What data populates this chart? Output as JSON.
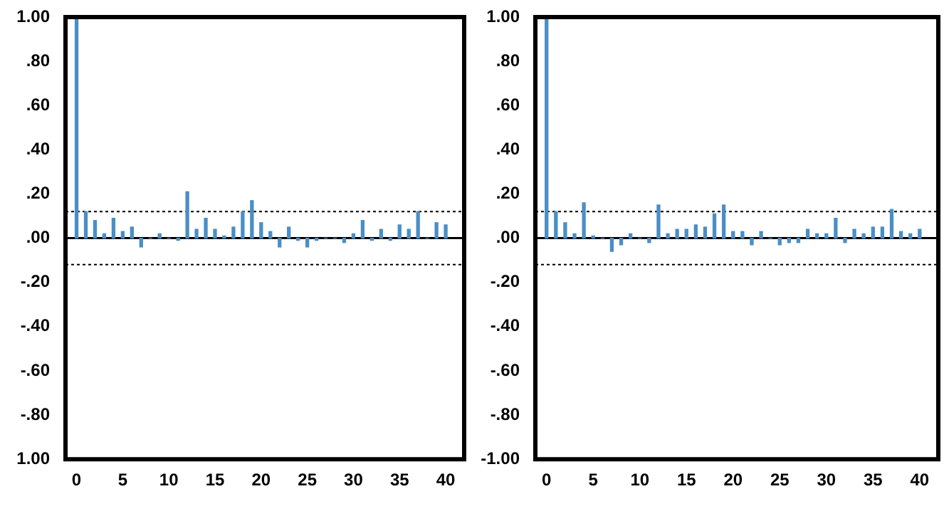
{
  "chart_data": [
    {
      "type": "bar",
      "x": [
        0,
        1,
        2,
        3,
        4,
        5,
        6,
        7,
        8,
        9,
        10,
        11,
        12,
        13,
        14,
        15,
        16,
        17,
        18,
        19,
        20,
        21,
        22,
        23,
        24,
        25,
        26,
        27,
        28,
        29,
        30,
        31,
        32,
        33,
        34,
        35,
        36,
        37,
        38,
        39,
        40
      ],
      "values": [
        1.0,
        0.12,
        0.08,
        0.02,
        0.09,
        0.03,
        0.05,
        -0.04,
        0,
        0.02,
        0,
        -0.01,
        0.21,
        0.04,
        0.09,
        0.04,
        0.01,
        0.05,
        0.12,
        0.17,
        0.07,
        0.03,
        -0.04,
        0.05,
        -0.01,
        -0.04,
        -0.01,
        0,
        0,
        -0.02,
        0.02,
        0.08,
        -0.01,
        0.04,
        -0.01,
        0.06,
        0.04,
        0.12,
        0,
        0.07,
        0.06
      ],
      "color": "#4a8ec6",
      "xlim": [
        -1.2,
        42
      ],
      "xticks": [
        0,
        5,
        10,
        15,
        20,
        25,
        30,
        35,
        40
      ],
      "ylim": [
        -1,
        1
      ],
      "yticks": [
        {
          "value": -1,
          "label": "1.00"
        },
        {
          "value": -0.8,
          "label": "-.80"
        },
        {
          "value": -0.6,
          "label": "-.60"
        },
        {
          "value": -0.4,
          "label": "-.40"
        },
        {
          "value": -0.2,
          "label": "-.20"
        },
        {
          "value": 0,
          "label": ".00"
        },
        {
          "value": 0.2,
          "label": ".20"
        },
        {
          "value": 0.4,
          "label": ".40"
        },
        {
          "value": 0.6,
          "label": ".60"
        },
        {
          "value": 0.8,
          "label": ".80"
        },
        {
          "value": 1,
          "label": "1.00"
        }
      ],
      "ref_lines": [
        {
          "axis": "y",
          "value": 0,
          "color": "#000000",
          "line_style": "solid"
        },
        {
          "axis": "y",
          "value": 0.12,
          "color": "#000000",
          "line_style": "dotted"
        },
        {
          "axis": "y",
          "value": -0.12,
          "color": "#000000",
          "line_style": "dotted"
        }
      ],
      "grid": false,
      "legend": false
    },
    {
      "type": "bar",
      "x": [
        0,
        1,
        2,
        3,
        4,
        5,
        6,
        7,
        8,
        9,
        10,
        11,
        12,
        13,
        14,
        15,
        16,
        17,
        18,
        19,
        20,
        21,
        22,
        23,
        24,
        25,
        26,
        27,
        28,
        29,
        30,
        31,
        32,
        33,
        34,
        35,
        36,
        37,
        38,
        39,
        40
      ],
      "values": [
        1.0,
        0.12,
        0.07,
        0.02,
        0.16,
        0.01,
        0,
        -0.06,
        -0.03,
        0.02,
        0,
        -0.02,
        0.15,
        0.02,
        0.04,
        0.04,
        0.06,
        0.05,
        0.11,
        0.15,
        0.03,
        0.03,
        -0.03,
        0.03,
        0,
        -0.03,
        -0.02,
        -0.02,
        0.04,
        0.02,
        0.02,
        0.09,
        -0.02,
        0.04,
        0.02,
        0.05,
        0.05,
        0.13,
        0.03,
        0.02,
        0.04
      ],
      "color": "#4a8ec6",
      "xlim": [
        -1.2,
        42
      ],
      "xticks": [
        0,
        5,
        10,
        15,
        20,
        25,
        30,
        35,
        40
      ],
      "ylim": [
        -1,
        1
      ],
      "yticks": [
        {
          "value": -1,
          "label": "-1.00"
        },
        {
          "value": -0.8,
          "label": "-.80"
        },
        {
          "value": -0.6,
          "label": "-.60"
        },
        {
          "value": -0.4,
          "label": "-.40"
        },
        {
          "value": -0.2,
          "label": "-.20"
        },
        {
          "value": 0,
          "label": ".00"
        },
        {
          "value": 0.2,
          "label": ".20"
        },
        {
          "value": 0.4,
          "label": ".40"
        },
        {
          "value": 0.6,
          "label": ".60"
        },
        {
          "value": 0.8,
          "label": ".80"
        },
        {
          "value": 1,
          "label": "1.00"
        }
      ],
      "ref_lines": [
        {
          "axis": "y",
          "value": 0,
          "color": "#000000",
          "line_style": "solid"
        },
        {
          "axis": "y",
          "value": 0.12,
          "color": "#000000",
          "line_style": "dotted"
        },
        {
          "axis": "y",
          "value": -0.12,
          "color": "#000000",
          "line_style": "dotted"
        }
      ],
      "grid": false,
      "legend": false
    }
  ]
}
